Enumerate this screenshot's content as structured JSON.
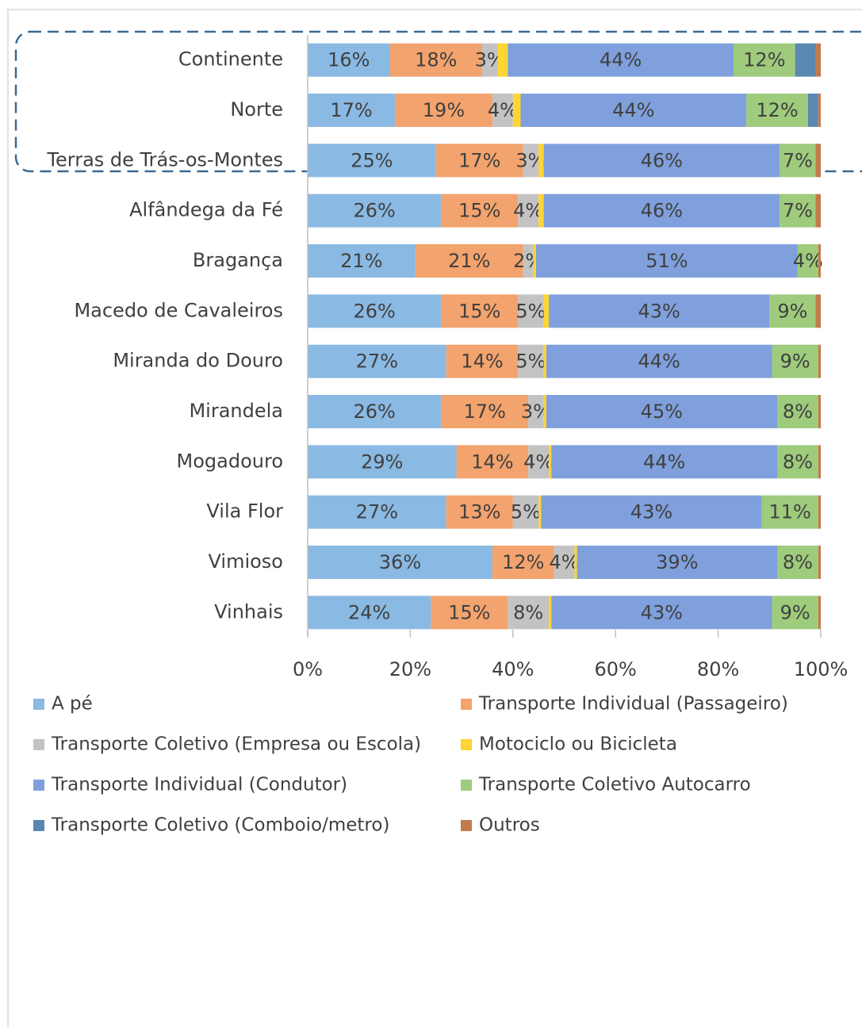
{
  "chart_data": {
    "type": "stacked-bar-horizontal",
    "categories": [
      "Continente",
      "Norte",
      "Terras de Trás-os-Montes",
      "Alfândega da Fé",
      "Bragança",
      "Macedo de Cavaleiros",
      "Miranda do Douro",
      "Mirandela",
      "Mogadouro",
      "Vila Flor",
      "Vimioso",
      "Vinhais"
    ],
    "series": [
      {
        "name": "A pé",
        "color": "#8ab9e3",
        "values": [
          16,
          17,
          25,
          26,
          21,
          26,
          27,
          26,
          29,
          27,
          36,
          24
        ],
        "value_labels": [
          "16%",
          "17%",
          "25%",
          "26%",
          "21%",
          "26%",
          "27%",
          "26%",
          "29%",
          "27%",
          "36%",
          "24%"
        ]
      },
      {
        "name": "Transporte Individual (Passageiro)",
        "color": "#f3a36d",
        "values": [
          18,
          19,
          17,
          15,
          21,
          15,
          14,
          17,
          14,
          13,
          12,
          15
        ],
        "value_labels": [
          "18%",
          "19%",
          "17%",
          "15%",
          "21%",
          "15%",
          "14%",
          "17%",
          "14%",
          "13%",
          "12%",
          "15%"
        ]
      },
      {
        "name": "Transporte Coletivo (Empresa ou Escola)",
        "color": "#c3c3c3",
        "values": [
          3,
          4,
          3,
          4,
          2,
          5,
          5,
          3,
          4,
          5,
          4,
          8
        ],
        "value_labels": [
          "3%",
          "4%",
          "3%",
          "4%",
          "2%",
          "5%",
          "5%",
          "3%",
          "4%",
          "5%",
          "4%",
          "8%"
        ]
      },
      {
        "name": "Motociclo ou Bicicleta",
        "color": "#ffd433",
        "values": [
          2,
          1.5,
          1,
          1,
          0.5,
          1,
          0.5,
          0.5,
          0.5,
          0.5,
          0.5,
          0.5
        ],
        "value_labels": [
          null,
          null,
          null,
          null,
          null,
          null,
          null,
          null,
          null,
          null,
          null,
          null
        ]
      },
      {
        "name": "Transporte Individual (Condutor)",
        "color": "#7fa0dc",
        "values": [
          44,
          44,
          46,
          46,
          51,
          43,
          44,
          45,
          44,
          43,
          39,
          43
        ],
        "value_labels": [
          "44%",
          "44%",
          "46%",
          "46%",
          "51%",
          "43%",
          "44%",
          "45%",
          "44%",
          "43%",
          "39%",
          "43%"
        ]
      },
      {
        "name": "Transporte Coletivo Autocarro",
        "color": "#9ecb7c",
        "values": [
          12,
          12,
          7,
          7,
          4,
          9,
          9,
          8,
          8,
          11,
          8,
          9
        ],
        "value_labels": [
          "12%",
          "12%",
          "7%",
          "7%",
          "4%",
          "9%",
          "9%",
          "8%",
          "8%",
          "11%",
          "8%",
          "9%"
        ]
      },
      {
        "name": "Transporte Coletivo (Comboio/metro)",
        "color": "#5a88b0",
        "values": [
          4,
          2,
          0,
          0,
          0,
          0,
          0,
          0,
          0,
          0,
          0,
          0
        ],
        "value_labels": [
          null,
          null,
          null,
          null,
          null,
          null,
          null,
          null,
          null,
          null,
          null,
          null
        ]
      },
      {
        "name": "Outros",
        "color": "#c27a4b",
        "values": [
          1,
          0.5,
          1,
          1,
          0.5,
          1,
          0.5,
          0.5,
          0.5,
          0.5,
          0.5,
          0.5
        ],
        "value_labels": [
          null,
          null,
          null,
          null,
          null,
          null,
          null,
          null,
          null,
          null,
          null,
          null
        ]
      }
    ],
    "xlim": [
      0,
      100
    ],
    "xticks": [
      {
        "value": 0,
        "label": "0%"
      },
      {
        "value": 20,
        "label": "20%"
      },
      {
        "value": 40,
        "label": "40%"
      },
      {
        "value": 60,
        "label": "60%"
      },
      {
        "value": 80,
        "label": "80%"
      },
      {
        "value": 100,
        "label": "100%"
      }
    ],
    "legend": "bottom"
  }
}
